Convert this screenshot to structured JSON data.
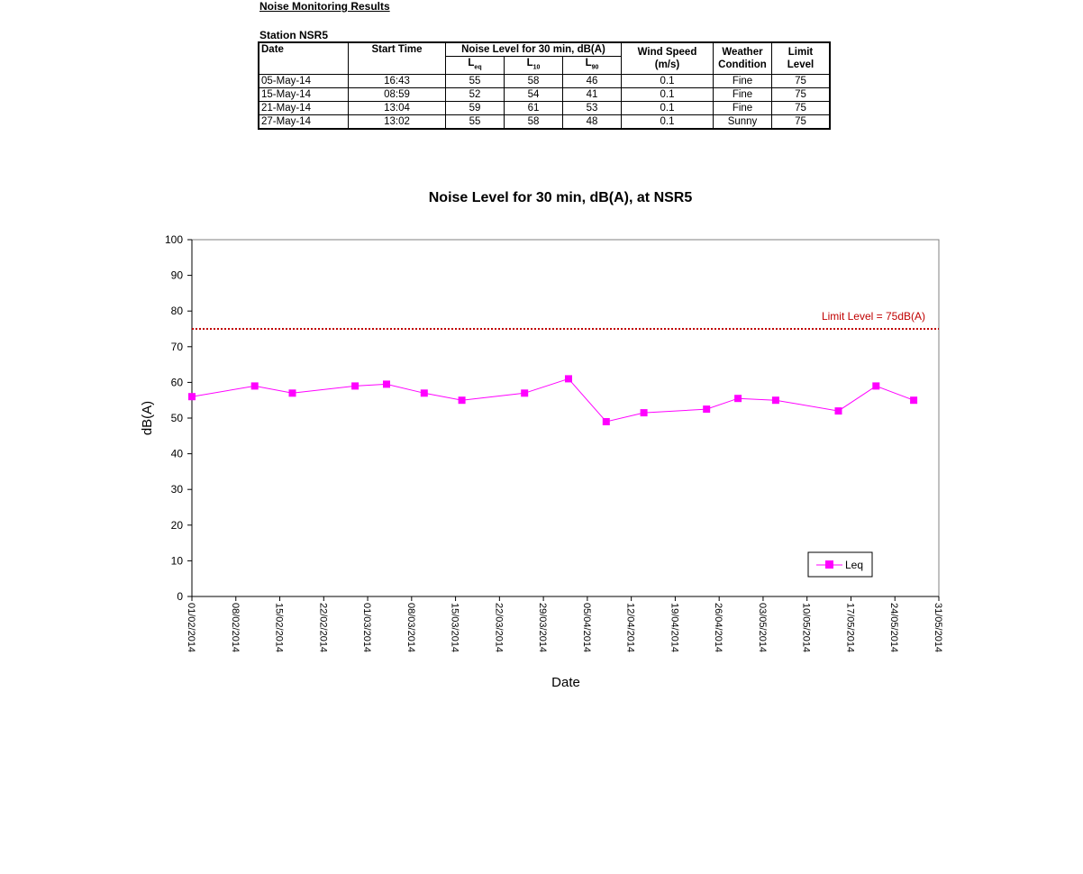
{
  "page": {
    "heading": "Noise Monitoring Results",
    "station": "Station NSR5"
  },
  "table": {
    "headers": {
      "date": "Date",
      "start_time": "Start Time",
      "noise_group": "Noise Level for 30 min, dB(A)",
      "leq": "L",
      "leq_sub": "eq",
      "l10": "L",
      "l10_sub": "10",
      "l90": "L",
      "l90_sub": "90",
      "wind1": "Wind Speed",
      "wind2": "(m/s)",
      "weather1": "Weather",
      "weather2": "Condition",
      "limit1": "Limit",
      "limit2": "Level"
    },
    "rows": [
      {
        "date": "05-May-14",
        "time": "16:43",
        "leq": "55",
        "l10": "58",
        "l90": "46",
        "wind": "0.1",
        "weather": "Fine",
        "limit": "75"
      },
      {
        "date": "15-May-14",
        "time": "08:59",
        "leq": "52",
        "l10": "54",
        "l90": "41",
        "wind": "0.1",
        "weather": "Fine",
        "limit": "75"
      },
      {
        "date": "21-May-14",
        "time": "13:04",
        "leq": "59",
        "l10": "61",
        "l90": "53",
        "wind": "0.1",
        "weather": "Fine",
        "limit": "75"
      },
      {
        "date": "27-May-14",
        "time": "13:02",
        "leq": "55",
        "l10": "58",
        "l90": "48",
        "wind": "0.1",
        "weather": "Sunny",
        "limit": "75"
      }
    ]
  },
  "chart_data": {
    "type": "line",
    "title": "Noise Level for 30 min, dB(A), at NSR5",
    "xlabel": "Date",
    "ylabel": "dB(A)",
    "xlim": [
      "01/02/2014",
      "31/05/2014"
    ],
    "ylim": [
      0,
      100
    ],
    "y_ticks": [
      0,
      10,
      20,
      30,
      40,
      50,
      60,
      70,
      80,
      90,
      100
    ],
    "x_ticks": [
      "01/02/2014",
      "08/02/2014",
      "15/02/2014",
      "22/02/2014",
      "01/03/2014",
      "08/03/2014",
      "15/03/2014",
      "22/03/2014",
      "29/03/2014",
      "05/04/2014",
      "12/04/2014",
      "19/04/2014",
      "26/04/2014",
      "03/05/2014",
      "10/05/2014",
      "17/05/2014",
      "24/05/2014",
      "31/05/2014"
    ],
    "grid": false,
    "legend_position": "bottom-right",
    "series": [
      {
        "name": "Leq",
        "color": "#ff00ff",
        "marker": "square",
        "points": [
          {
            "x": "01/02/2014",
            "y": 56
          },
          {
            "x": "11/02/2014",
            "y": 59
          },
          {
            "x": "17/02/2014",
            "y": 57
          },
          {
            "x": "27/02/2014",
            "y": 59
          },
          {
            "x": "04/03/2014",
            "y": 59.5
          },
          {
            "x": "10/03/2014",
            "y": 57
          },
          {
            "x": "16/03/2014",
            "y": 55
          },
          {
            "x": "26/03/2014",
            "y": 57
          },
          {
            "x": "02/04/2014",
            "y": 61
          },
          {
            "x": "08/04/2014",
            "y": 49
          },
          {
            "x": "14/04/2014",
            "y": 51.5
          },
          {
            "x": "24/04/2014",
            "y": 52.5
          },
          {
            "x": "29/04/2014",
            "y": 55.5
          },
          {
            "x": "05/05/2014",
            "y": 55
          },
          {
            "x": "15/05/2014",
            "y": 52
          },
          {
            "x": "21/05/2014",
            "y": 59
          },
          {
            "x": "27/05/2014",
            "y": 55
          }
        ]
      }
    ],
    "reference_line": {
      "label": "Limit Level  = 75dB(A)",
      "value": 75,
      "color": "#c00000",
      "style": "dotted"
    }
  }
}
